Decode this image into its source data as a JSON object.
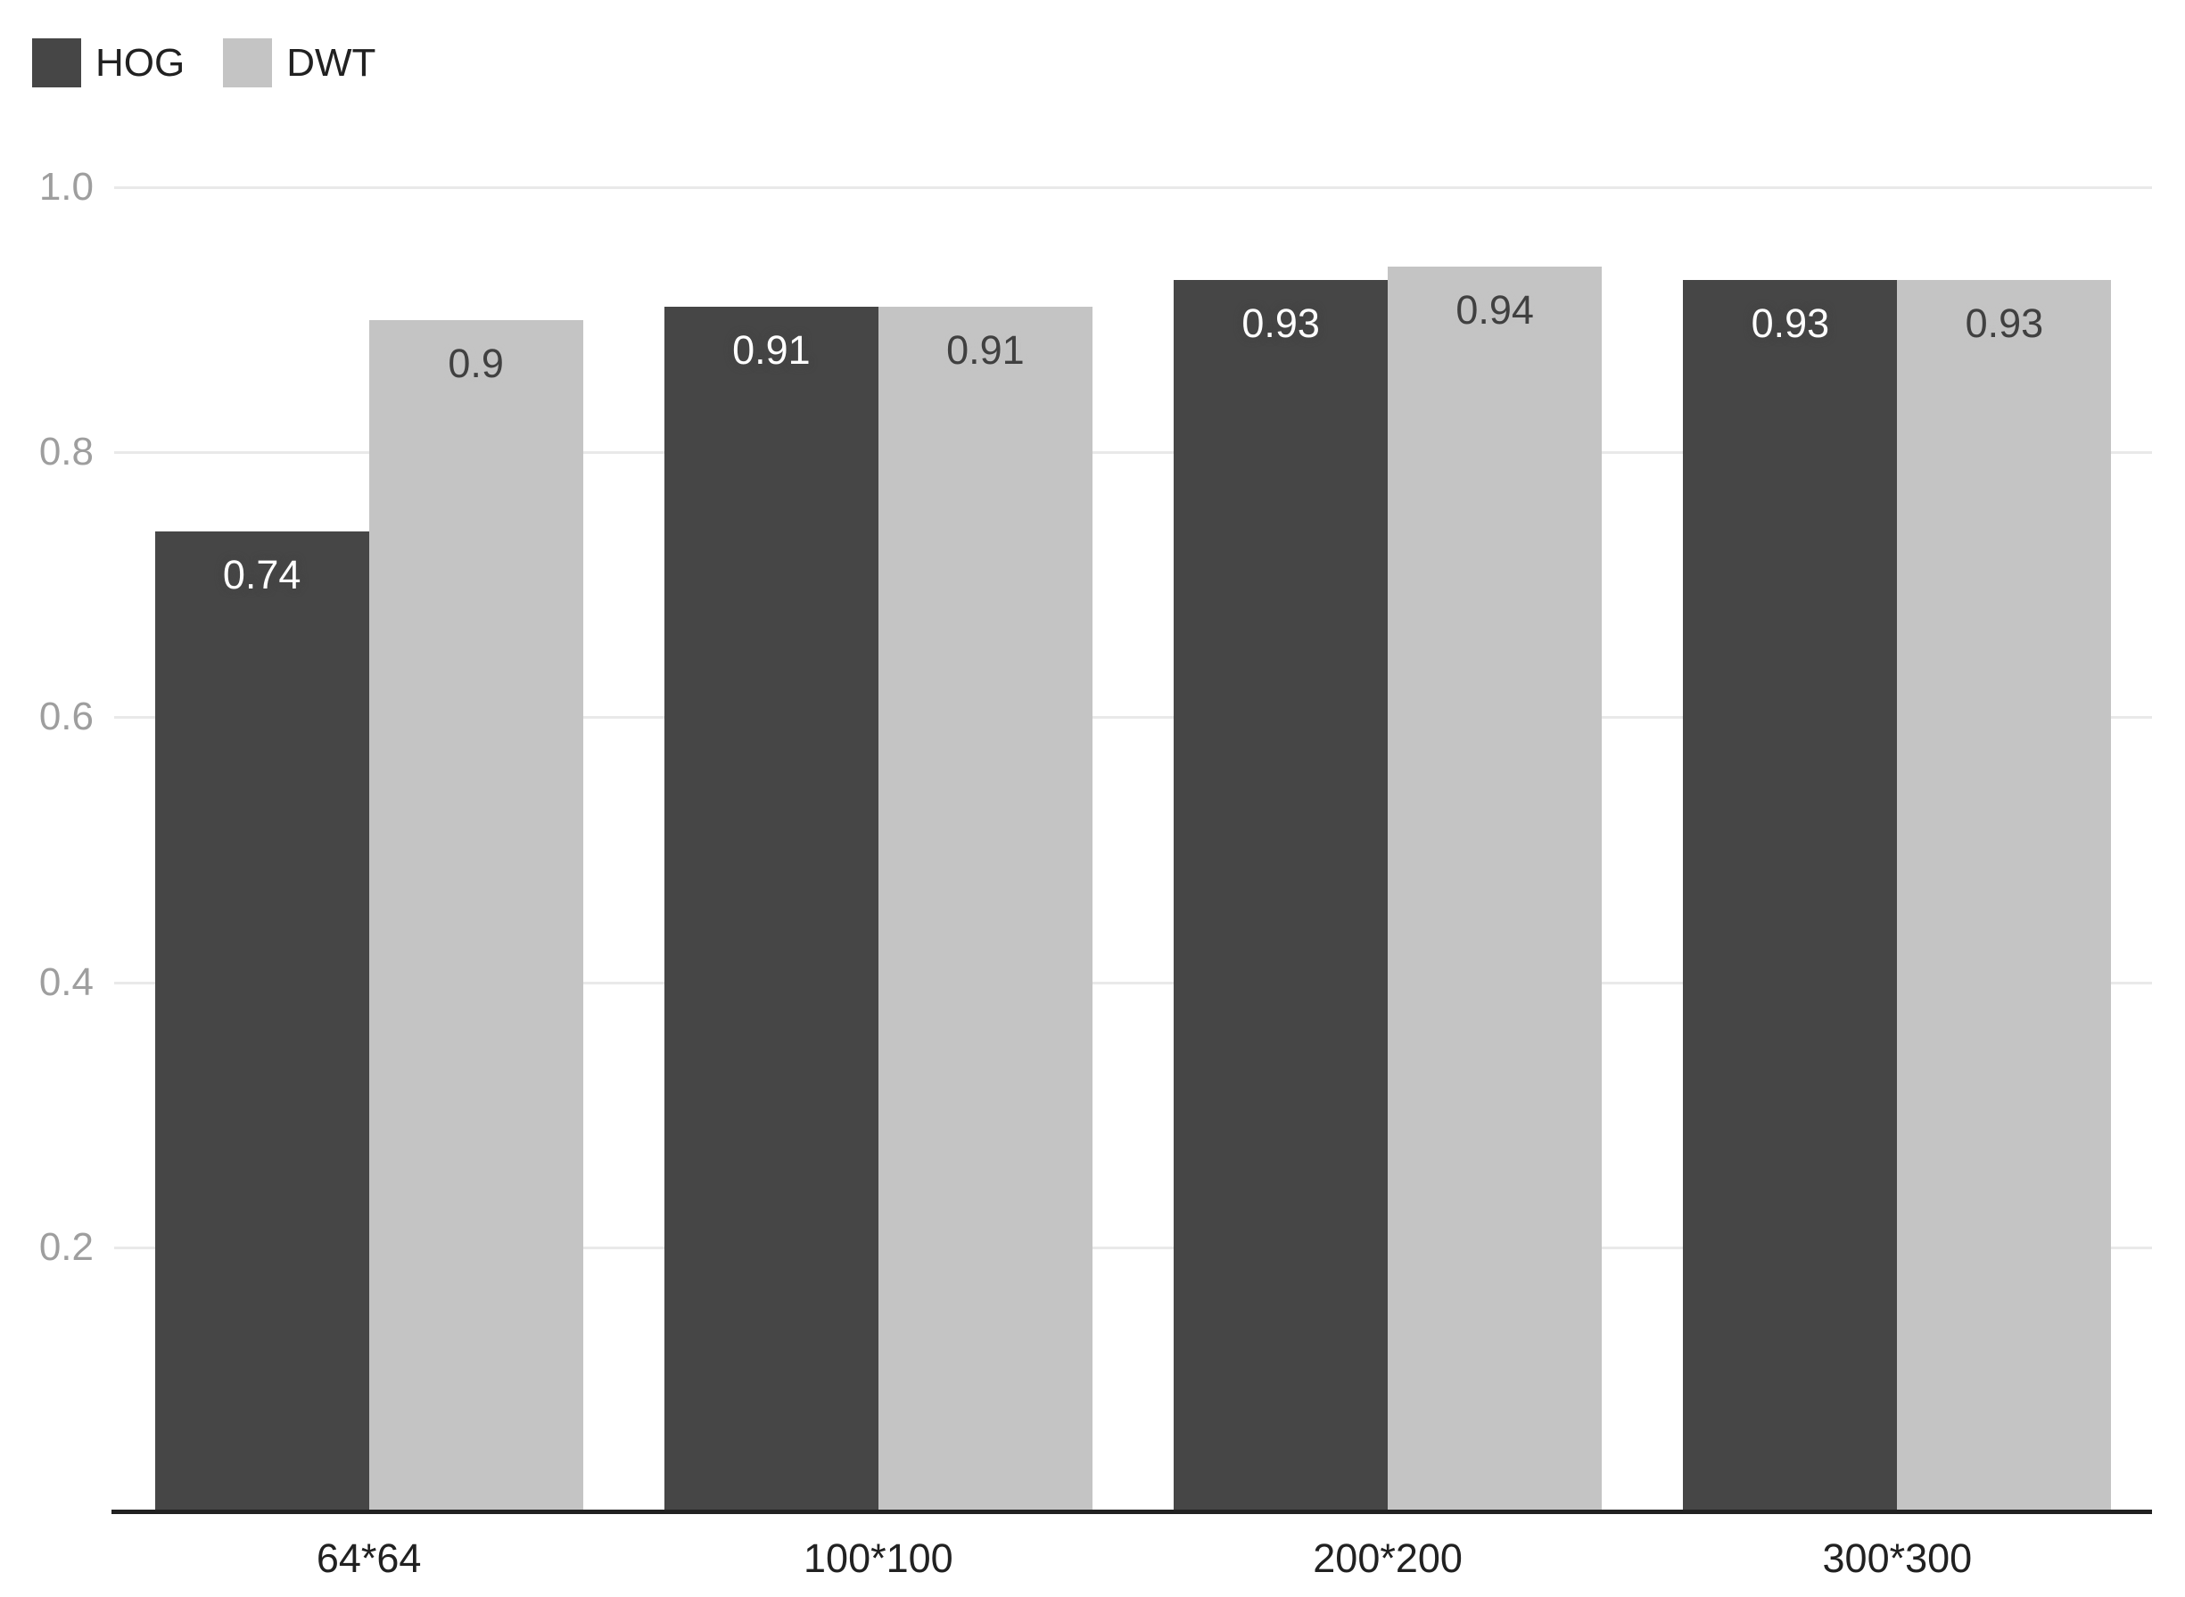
{
  "legend": {
    "items": [
      {
        "label": "HOG",
        "color": "#464646"
      },
      {
        "label": "DWT",
        "color": "#c4c4c4"
      }
    ]
  },
  "chart_data": {
    "type": "bar",
    "title": "",
    "xlabel": "",
    "ylabel": "",
    "categories": [
      "64*64",
      "100*100",
      "200*200",
      "300*300"
    ],
    "series": [
      {
        "name": "HOG",
        "values": [
          0.74,
          0.91,
          0.93,
          0.93
        ],
        "display_values": [
          "0.74",
          "0.91",
          "0.93",
          "0.93"
        ],
        "color": "#464646",
        "label_color": "#ffffff"
      },
      {
        "name": "DWT",
        "values": [
          0.9,
          0.91,
          0.94,
          0.93
        ],
        "display_values": [
          "0.9",
          "0.91",
          "0.94",
          "0.93"
        ],
        "color": "#c4c4c4",
        "label_color": "#404040"
      }
    ],
    "ylim": [
      0,
      1.0
    ],
    "yticks": [
      {
        "value": 0.2,
        "label": "0.2"
      },
      {
        "value": 0.4,
        "label": "0.4"
      },
      {
        "value": 0.6,
        "label": "0.6"
      },
      {
        "value": 0.8,
        "label": "0.8"
      },
      {
        "value": 1.0,
        "label": "1.0"
      }
    ],
    "grid": true,
    "legend_position": "top-left",
    "axis_line_color": "#212121",
    "gridline_color": "#e9e9e9",
    "ytick_color": "#9e9e9e",
    "xlabel_color": "#212121",
    "background_color": "#ffffff"
  }
}
